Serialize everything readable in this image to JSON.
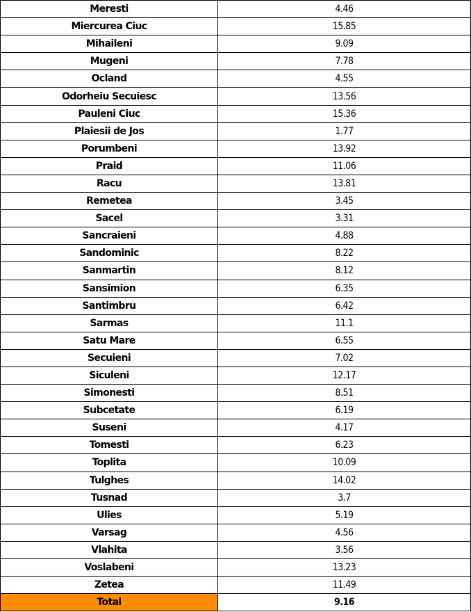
{
  "table": {
    "rows": [
      {
        "name": "Meresti",
        "value": "4.46"
      },
      {
        "name": "Miercurea Ciuc",
        "value": "15.85"
      },
      {
        "name": "Mihaileni",
        "value": "9.09"
      },
      {
        "name": "Mugeni",
        "value": "7.78"
      },
      {
        "name": "Ocland",
        "value": "4.55"
      },
      {
        "name": "Odorheiu Secuiesc",
        "value": "13.56"
      },
      {
        "name": "Pauleni Ciuc",
        "value": "15.36"
      },
      {
        "name": "Plaiesii de Jos",
        "value": "1.77"
      },
      {
        "name": "Porumbeni",
        "value": "13.92"
      },
      {
        "name": "Praid",
        "value": "11.06"
      },
      {
        "name": "Racu",
        "value": "13.81"
      },
      {
        "name": "Remetea",
        "value": "3.45"
      },
      {
        "name": "Sacel",
        "value": "3.31"
      },
      {
        "name": "Sancraieni",
        "value": "4.88"
      },
      {
        "name": "Sandominic",
        "value": "8.22"
      },
      {
        "name": "Sanmartin",
        "value": "8.12"
      },
      {
        "name": "Sansimion",
        "value": "6.35"
      },
      {
        "name": "Santimbru",
        "value": "6.42"
      },
      {
        "name": "Sarmas",
        "value": "11.1"
      },
      {
        "name": "Satu Mare",
        "value": "6.55"
      },
      {
        "name": "Secuieni",
        "value": "7.02"
      },
      {
        "name": "Siculeni",
        "value": "12.17"
      },
      {
        "name": "Simonesti",
        "value": "8.51"
      },
      {
        "name": "Subcetate",
        "value": "6.19"
      },
      {
        "name": "Suseni",
        "value": "4.17"
      },
      {
        "name": "Tomesti",
        "value": "6.23"
      },
      {
        "name": "Toplita",
        "value": "10.09"
      },
      {
        "name": "Tulghes",
        "value": "14.02"
      },
      {
        "name": "Tusnad",
        "value": "3.7"
      },
      {
        "name": "Ulies",
        "value": "5.19"
      },
      {
        "name": "Varsag",
        "value": "4.56"
      },
      {
        "name": "Vlahita",
        "value": "3.56"
      },
      {
        "name": "Voslabeni",
        "value": "13.23"
      },
      {
        "name": "Zetea",
        "value": "11.49"
      }
    ],
    "total": {
      "name": "Total",
      "value": "9.16"
    },
    "colors": {
      "total_highlight": "#FF8C00",
      "border": "#000000"
    }
  }
}
